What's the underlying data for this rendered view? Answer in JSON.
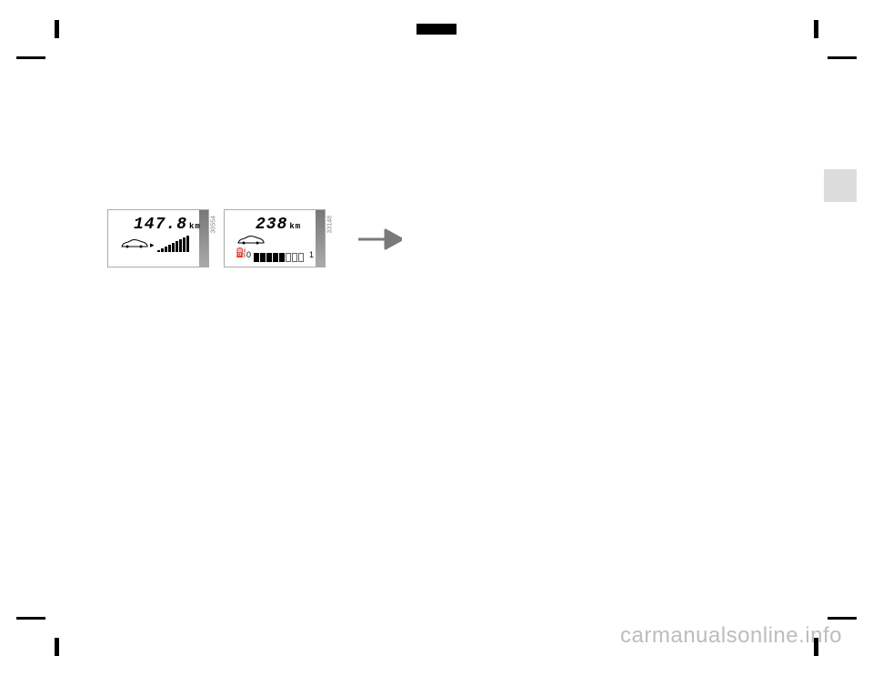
{
  "watermark": "carmanualsonline.info",
  "lcd1": {
    "distance": "147.8",
    "unit": "km",
    "sideLabel": "30554",
    "bars": [
      2,
      4,
      6,
      8,
      10,
      12,
      14,
      16,
      18
    ]
  },
  "lcd2": {
    "distance": "238",
    "unit": "km",
    "sideLabel": "33148",
    "gauge": {
      "zero": "0",
      "one": "1",
      "filled": 5,
      "total": 8
    }
  },
  "colors": {
    "bg": "#ffffff",
    "mark": "#000000",
    "sideTab": "#dcdcdc",
    "watermark": "#bdbdbd",
    "lcdBorder": "#aaaaaa",
    "arrow": "#7a7a7a"
  }
}
